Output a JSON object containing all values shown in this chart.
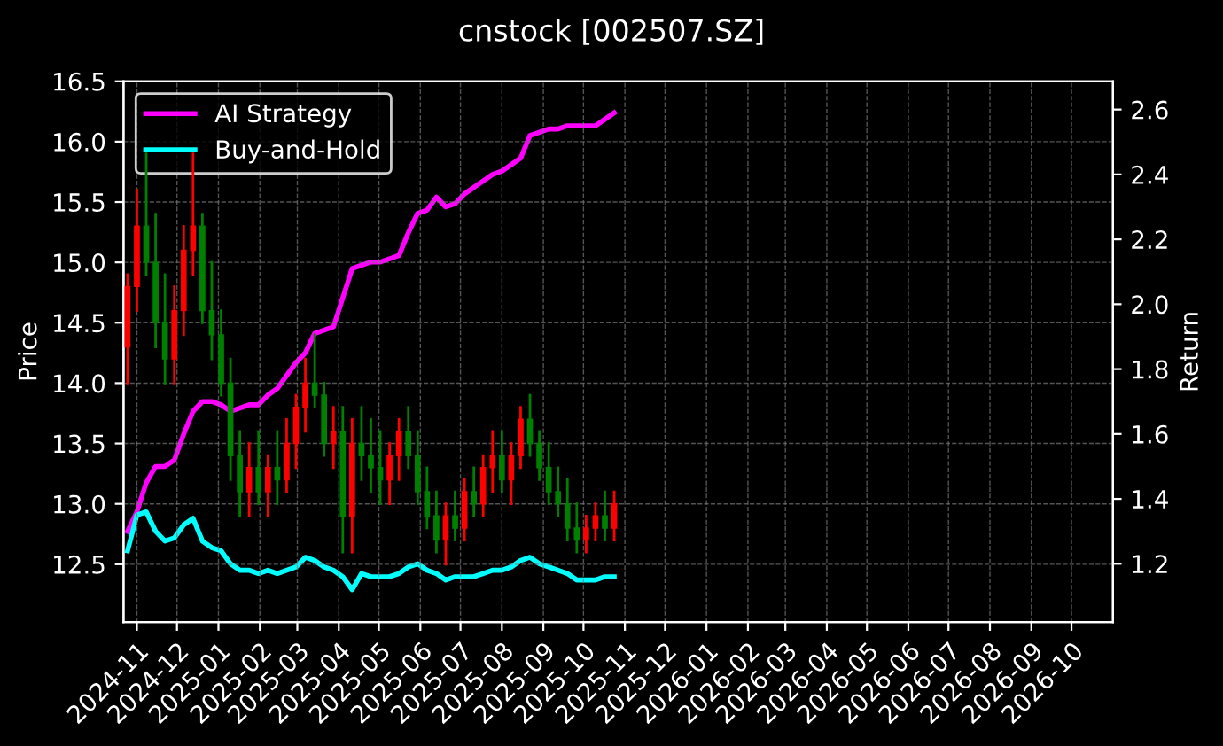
{
  "chart_data": {
    "type": "candlestick",
    "title": "cnstock [002507.SZ]",
    "ylabel": "Price",
    "y2label": "Return",
    "x": [
      "2024-10-25",
      "2024-11-01",
      "2024-11-08",
      "2024-11-15",
      "2024-11-22",
      "2024-11-29",
      "2024-12-06",
      "2024-12-13",
      "2024-12-20",
      "2024-12-27",
      "2025-01-03",
      "2025-01-10",
      "2025-01-17",
      "2025-01-24",
      "2025-01-31",
      "2025-02-07",
      "2025-02-14",
      "2025-02-21",
      "2025-02-28",
      "2025-03-07",
      "2025-03-14",
      "2025-03-21",
      "2025-03-28",
      "2025-04-04",
      "2025-04-11",
      "2025-04-18",
      "2025-04-25",
      "2025-05-02",
      "2025-05-09",
      "2025-05-16",
      "2025-05-23",
      "2025-05-30",
      "2025-06-06",
      "2025-06-13",
      "2025-06-20",
      "2025-06-27",
      "2025-07-04",
      "2025-07-11",
      "2025-07-18",
      "2025-07-25",
      "2025-08-01",
      "2025-08-08",
      "2025-08-15",
      "2025-08-22",
      "2025-08-29",
      "2025-09-05",
      "2025-09-12",
      "2025-09-19",
      "2025-09-26",
      "2025-10-03",
      "2025-10-10",
      "2025-10-17",
      "2025-10-24"
    ],
    "ohlc": [
      [
        14.3,
        14.9,
        14.0,
        14.8
      ],
      [
        14.8,
        15.6,
        14.6,
        15.3
      ],
      [
        15.3,
        15.9,
        14.9,
        15.0
      ],
      [
        15.0,
        15.4,
        14.3,
        14.5
      ],
      [
        14.5,
        14.9,
        14.0,
        14.2
      ],
      [
        14.2,
        14.8,
        14.0,
        14.6
      ],
      [
        14.6,
        15.3,
        14.4,
        15.1
      ],
      [
        15.1,
        15.9,
        14.9,
        15.3
      ],
      [
        15.3,
        15.4,
        14.5,
        14.6
      ],
      [
        14.6,
        15.0,
        14.2,
        14.4
      ],
      [
        14.4,
        14.6,
        13.9,
        14.0
      ],
      [
        14.0,
        14.2,
        13.2,
        13.4
      ],
      [
        13.4,
        13.6,
        12.9,
        13.1
      ],
      [
        13.1,
        13.5,
        12.9,
        13.3
      ],
      [
        13.3,
        13.6,
        13.0,
        13.1
      ],
      [
        13.1,
        13.4,
        12.9,
        13.3
      ],
      [
        13.3,
        13.6,
        13.0,
        13.2
      ],
      [
        13.2,
        13.7,
        13.1,
        13.5
      ],
      [
        13.5,
        13.9,
        13.3,
        13.8
      ],
      [
        13.8,
        14.2,
        13.6,
        14.0
      ],
      [
        14.0,
        14.4,
        13.8,
        13.9
      ],
      [
        13.9,
        14.0,
        13.4,
        13.5
      ],
      [
        13.5,
        13.8,
        13.3,
        13.6
      ],
      [
        13.6,
        13.8,
        12.6,
        12.9
      ],
      [
        12.9,
        13.7,
        12.6,
        13.5
      ],
      [
        13.5,
        13.8,
        13.2,
        13.4
      ],
      [
        13.4,
        13.7,
        13.1,
        13.3
      ],
      [
        13.3,
        13.6,
        13.0,
        13.2
      ],
      [
        13.2,
        13.5,
        13.0,
        13.4
      ],
      [
        13.4,
        13.7,
        13.2,
        13.6
      ],
      [
        13.6,
        13.8,
        13.3,
        13.4
      ],
      [
        13.4,
        13.6,
        13.0,
        13.1
      ],
      [
        13.1,
        13.3,
        12.8,
        12.9
      ],
      [
        12.9,
        13.1,
        12.6,
        12.7
      ],
      [
        12.7,
        13.0,
        12.5,
        12.9
      ],
      [
        12.9,
        13.1,
        12.7,
        12.8
      ],
      [
        12.8,
        13.2,
        12.7,
        13.1
      ],
      [
        13.1,
        13.3,
        12.9,
        13.0
      ],
      [
        13.0,
        13.4,
        12.9,
        13.3
      ],
      [
        13.3,
        13.6,
        13.1,
        13.4
      ],
      [
        13.4,
        13.6,
        13.1,
        13.2
      ],
      [
        13.2,
        13.5,
        13.0,
        13.4
      ],
      [
        13.4,
        13.8,
        13.3,
        13.7
      ],
      [
        13.7,
        13.9,
        13.4,
        13.5
      ],
      [
        13.5,
        13.6,
        13.2,
        13.3
      ],
      [
        13.3,
        13.5,
        13.0,
        13.1
      ],
      [
        13.1,
        13.3,
        12.9,
        13.0
      ],
      [
        13.0,
        13.2,
        12.7,
        12.8
      ],
      [
        12.8,
        13.0,
        12.6,
        12.7
      ],
      [
        12.7,
        12.9,
        12.6,
        12.8
      ],
      [
        12.8,
        13.0,
        12.7,
        12.9
      ],
      [
        12.9,
        13.1,
        12.7,
        12.8
      ],
      [
        12.8,
        13.1,
        12.7,
        13.0
      ]
    ],
    "colors": [
      "#ff0000",
      "#ff0000",
      "#008000",
      "#008000",
      "#008000",
      "#ff0000",
      "#ff0000",
      "#ff0000",
      "#008000",
      "#008000",
      "#008000",
      "#008000",
      "#008000",
      "#ff0000",
      "#008000",
      "#ff0000",
      "#008000",
      "#ff0000",
      "#ff0000",
      "#ff0000",
      "#008000",
      "#008000",
      "#ff0000",
      "#008000",
      "#ff0000",
      "#008000",
      "#008000",
      "#008000",
      "#ff0000",
      "#ff0000",
      "#008000",
      "#008000",
      "#008000",
      "#008000",
      "#ff0000",
      "#008000",
      "#ff0000",
      "#008000",
      "#ff0000",
      "#ff0000",
      "#008000",
      "#ff0000",
      "#ff0000",
      "#008000",
      "#008000",
      "#008000",
      "#008000",
      "#008000",
      "#008000",
      "#ff0000",
      "#ff0000",
      "#008000",
      "#ff0000"
    ],
    "series": [
      {
        "name": "AI Strategy",
        "type": "line",
        "axis": "y2",
        "color": "#ff00ff",
        "values": [
          1.3,
          1.36,
          1.45,
          1.5,
          1.5,
          1.52,
          1.6,
          1.67,
          1.7,
          1.7,
          1.69,
          1.67,
          1.68,
          1.69,
          1.69,
          1.72,
          1.74,
          1.78,
          1.82,
          1.85,
          1.91,
          1.92,
          1.93,
          2.02,
          2.11,
          2.12,
          2.13,
          2.13,
          2.14,
          2.15,
          2.22,
          2.28,
          2.29,
          2.33,
          2.3,
          2.31,
          2.34,
          2.36,
          2.38,
          2.4,
          2.41,
          2.43,
          2.45,
          2.52,
          2.53,
          2.54,
          2.54,
          2.55,
          2.55,
          2.55,
          2.55,
          2.57,
          2.59
        ]
      },
      {
        "name": "Buy-and-Hold",
        "type": "line",
        "axis": "y2",
        "color": "#00ffff",
        "values": [
          1.24,
          1.35,
          1.36,
          1.3,
          1.27,
          1.28,
          1.32,
          1.34,
          1.27,
          1.25,
          1.24,
          1.2,
          1.18,
          1.18,
          1.17,
          1.18,
          1.17,
          1.18,
          1.19,
          1.22,
          1.21,
          1.19,
          1.18,
          1.16,
          1.12,
          1.17,
          1.16,
          1.16,
          1.16,
          1.17,
          1.19,
          1.2,
          1.18,
          1.17,
          1.15,
          1.16,
          1.16,
          1.16,
          1.17,
          1.18,
          1.18,
          1.19,
          1.21,
          1.22,
          1.2,
          1.19,
          1.18,
          1.17,
          1.15,
          1.15,
          1.15,
          1.16,
          1.16
        ]
      }
    ],
    "xlim": [
      "2024-10-22",
      "2026-11-01"
    ],
    "xticks": [
      "2024-11",
      "2024-12",
      "2025-01",
      "2025-02",
      "2025-03",
      "2025-04",
      "2025-05",
      "2025-06",
      "2025-07",
      "2025-08",
      "2025-09",
      "2025-10",
      "2025-11",
      "2025-12",
      "2026-01",
      "2026-02",
      "2026-03",
      "2026-04",
      "2026-05",
      "2026-06",
      "2026-07",
      "2026-08",
      "2026-09",
      "2026-10"
    ],
    "ylim": [
      12.02,
      16.5
    ],
    "yticks": [
      12.5,
      {
        "value": 13,
        "label": "13.0"
      },
      13.5,
      {
        "value": 14,
        "label": "14.0"
      },
      14.5,
      {
        "value": 15,
        "label": "15.0"
      },
      15.5,
      {
        "value": 16,
        "label": "16.0"
      },
      16.5
    ],
    "y2lim": [
      1.02,
      2.687
    ],
    "y2ticks": [
      1.2,
      1.4,
      1.6,
      1.8,
      {
        "value": 2,
        "label": "2.0"
      },
      2.2,
      2.4,
      2.6
    ],
    "grid": true,
    "legend": "top left"
  }
}
